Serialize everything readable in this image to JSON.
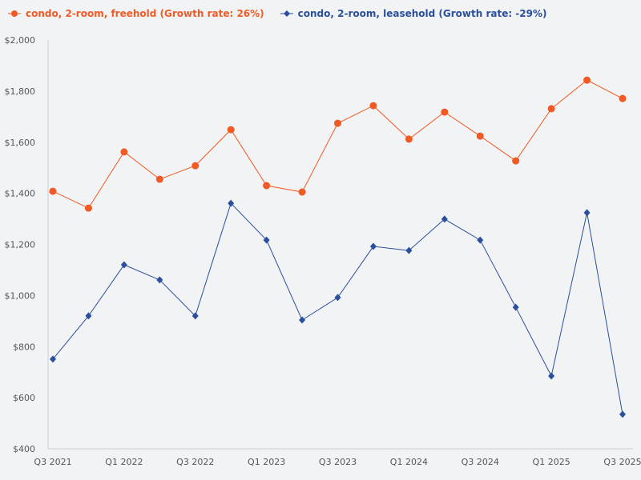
{
  "chart_data": {
    "type": "line",
    "x_tick_labels": [
      "Q3 2021",
      "Q1 2022",
      "Q3 2022",
      "Q1 2023",
      "Q3 2023",
      "Q1 2024",
      "Q3 2024",
      "Q1 2025",
      "Q3 2025"
    ],
    "y_tick_labels": [
      "$400",
      "$600",
      "$800",
      "$1,000",
      "$1,200",
      "$1,400",
      "$1,600",
      "$1,800",
      "$2,000"
    ],
    "ylim": [
      400,
      2000
    ],
    "grid": false,
    "legend": "top-left",
    "series": [
      {
        "name": "condo, 2-room, freehold (Growth rate: 26%)",
        "color": "#f15a24",
        "marker": "circle",
        "values": [
          1408,
          1342,
          1562,
          1455,
          1508,
          1649,
          1430,
          1405,
          1674,
          1743,
          1612,
          1718,
          1624,
          1527,
          1731,
          1843,
          1771
        ]
      },
      {
        "name": "condo, 2-room, leasehold (Growth rate: -29%)",
        "color": "#2a4f9c",
        "marker": "diamond",
        "values": [
          751,
          920,
          1120,
          1061,
          920,
          1361,
          1217,
          904,
          992,
          1192,
          1176,
          1299,
          1217,
          954,
          685,
          1324,
          535
        ]
      }
    ]
  }
}
